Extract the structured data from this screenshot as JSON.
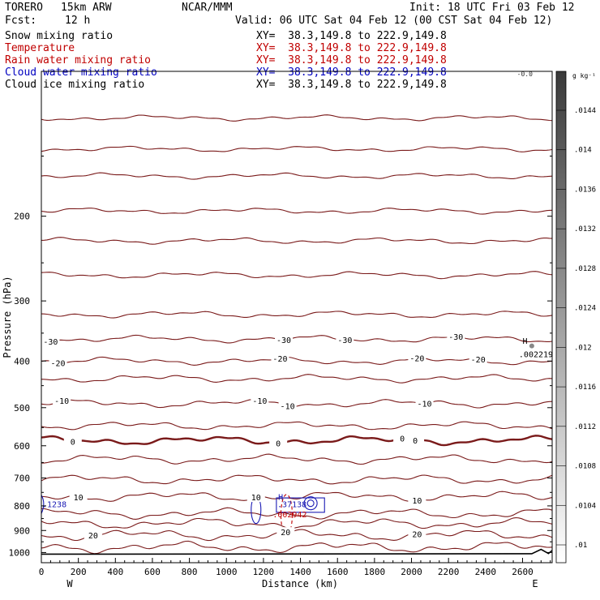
{
  "header": {
    "model": "TORERO",
    "resolution": "15km ARW",
    "institution": "NCAR/MMM",
    "init": "Init: 18 UTC Fri 03 Feb 12",
    "fcst_label": "Fcst:",
    "fcst_value": "12 h",
    "valid": "Valid: 06 UTC Sat 04 Feb 12 (00 CST Sat 04 Feb 12)"
  },
  "fields": [
    {
      "name": "Snow mixing ratio",
      "xy": "XY=  38.3,149.8 to 222.9,149.8",
      "color": "#000000"
    },
    {
      "name": "Temperature",
      "xy": "XY=  38.3,149.8 to 222.9,149.8",
      "color": "#c00000"
    },
    {
      "name": "Rain water mixing ratio",
      "xy": "XY=  38.3,149.8 to 222.9,149.8",
      "color": "#c00000"
    },
    {
      "name": "Cloud water mixing ratio",
      "xy": "XY=  38.3,149.8 to 222.9,149.8",
      "color": "#0000c0"
    },
    {
      "name": "Cloud ice mixing ratio",
      "xy": "XY=  38.3,149.8 to 222.9,149.8",
      "color": "#000000"
    }
  ],
  "chart_data": {
    "type": "contour-cross-section",
    "xlabel": "Distance (km)",
    "ylabel": "Pressure (hPa)",
    "x_ticks": [
      0,
      200,
      400,
      600,
      800,
      1000,
      1200,
      1400,
      1600,
      1800,
      2000,
      2200,
      2400,
      2600
    ],
    "y_ticks": [
      200,
      300,
      400,
      500,
      600,
      700,
      800,
      900,
      1000
    ],
    "xlim": [
      0,
      2760
    ],
    "ylim": [
      100,
      1050
    ],
    "y_scale": "log",
    "x_end_labels": {
      "left": "W",
      "right": "E"
    },
    "temperature_contours": {
      "color": "#7a1a1a",
      "labelled": [
        {
          "value": -30,
          "p": 360,
          "labels_x": [
            50,
            1310,
            1640,
            2240
          ]
        },
        {
          "value": -20,
          "p": 400,
          "labels_x": [
            90,
            1290,
            2030,
            2360
          ]
        },
        {
          "value": -10,
          "p": 490,
          "labels_x": [
            110,
            1180,
            1330,
            2070
          ]
        },
        {
          "value": 0,
          "p": 585,
          "labels_x": [
            170,
            1280,
            1950,
            2020
          ],
          "bold": true
        },
        {
          "value": 10,
          "p": 765,
          "labels_x": [
            200,
            1160,
            2030
          ]
        },
        {
          "value": 20,
          "p": 920,
          "labels_x": [
            280,
            1320,
            2030
          ]
        }
      ],
      "unlabelled_p": [
        125,
        145,
        165,
        195,
        225,
        265,
        320,
        435,
        545,
        640,
        705,
        830,
        870,
        975
      ]
    },
    "cloud_water": {
      "color": "#1a1ab4",
      "max_label": "H",
      "max_value": ".37138",
      "edge_value": ".1238"
    },
    "rain_water": {
      "color": "#c00000",
      "max_value": ".002942"
    },
    "snow": {
      "max_label": "H",
      "max_value": ".002219"
    },
    "top_value": "-0.0",
    "colorbar": {
      "unit": "g kg⁻¹",
      "ticks": [
        ".0144",
        ".014",
        ".0136",
        ".0132",
        ".0128",
        ".0124",
        ".012",
        ".0116",
        ".0112",
        ".0108",
        ".0104",
        ".01"
      ]
    }
  }
}
